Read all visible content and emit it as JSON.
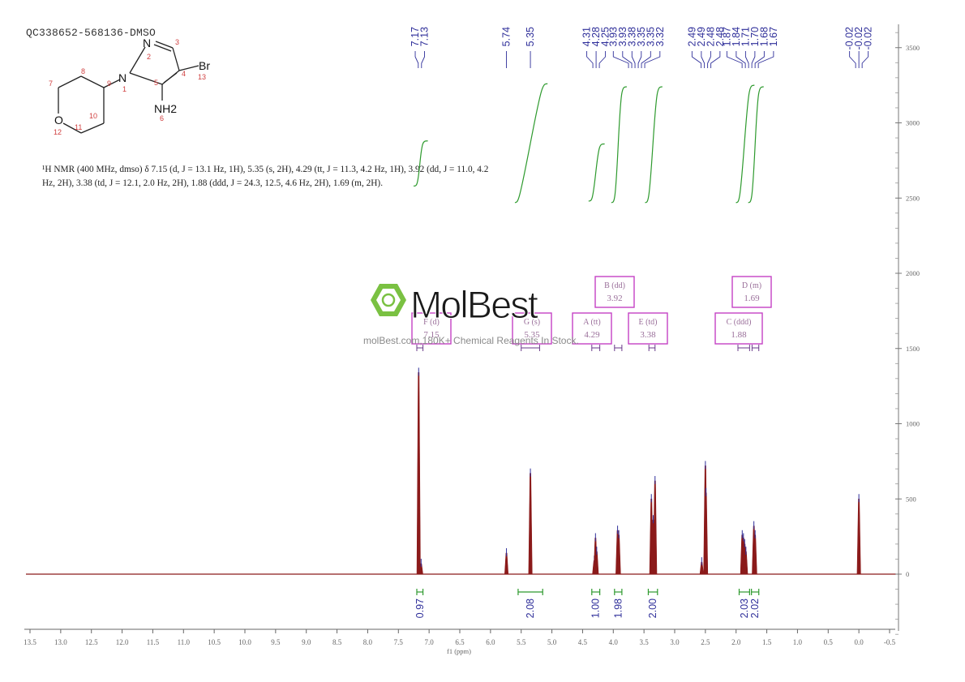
{
  "sample_id": "QC338652-568136-DMSO",
  "nmr_description": "¹H NMR (400 MHz, dmso) δ 7.15 (d, J = 13.1 Hz, 1H), 5.35 (s, 2H), 4.29 (tt, J = 11.3, 4.2 Hz, 1H), 3.92 (dd, J = 11.0, 4.2 Hz, 2H), 3.38 (td, J = 12.1, 2.0 Hz, 2H), 1.88 (ddd, J = 24.3, 12.5, 4.6 Hz, 2H), 1.69 (m, 2H).",
  "structure": {
    "atoms": {
      "n1": "N",
      "n2": "N",
      "o": "O",
      "br": "Br",
      "nh2": "NH2"
    },
    "numbers": [
      "1",
      "2",
      "3",
      "4",
      "5",
      "6",
      "7",
      "8",
      "9",
      "10",
      "11",
      "12",
      "13"
    ]
  },
  "watermark": {
    "logo": "MolBest",
    "url_text": "molBest.com,180K+ Chemical Reagents In Stock."
  },
  "chart_data": {
    "type": "line",
    "xlabel": "f1 (ppm)",
    "xlim": [
      13.5,
      -0.5
    ],
    "ylim": [
      -500,
      3600
    ],
    "x_ticks": [
      "13.5",
      "13.0",
      "12.5",
      "12.0",
      "11.5",
      "11.0",
      "10.5",
      "10.0",
      "9.5",
      "9.0",
      "8.5",
      "8.0",
      "7.5",
      "7.0",
      "6.5",
      "6.0",
      "5.5",
      "5.0",
      "4.5",
      "4.0",
      "3.5",
      "3.0",
      "2.5",
      "2.0",
      "1.5",
      "1.0",
      "0.5",
      "0.0",
      "-0.5"
    ],
    "y_ticks": [
      "3500",
      "3000",
      "2500",
      "2000",
      "1500",
      "1000",
      "500",
      "0"
    ],
    "peak_labels": [
      "7.17",
      "7.13",
      "5.74",
      "5.35",
      "4.31",
      "4.28",
      "4.25",
      "3.93",
      "3.93",
      "3.38",
      "3.35",
      "3.35",
      "3.32",
      "2.49",
      "2.49",
      "2.48",
      "2.48",
      "1.87",
      "1.84",
      "1.71",
      "1.70",
      "1.68",
      "1.67",
      "-0.02",
      "-0.02",
      "-0.02"
    ],
    "peaks": [
      {
        "ppm": 7.17,
        "h": 1340
      },
      {
        "ppm": 7.13,
        "h": 70
      },
      {
        "ppm": 5.74,
        "h": 140
      },
      {
        "ppm": 5.35,
        "h": 670
      },
      {
        "ppm": 4.31,
        "h": 90
      },
      {
        "ppm": 4.29,
        "h": 240
      },
      {
        "ppm": 4.27,
        "h": 150
      },
      {
        "ppm": 3.93,
        "h": 290
      },
      {
        "ppm": 3.91,
        "h": 260
      },
      {
        "ppm": 3.38,
        "h": 500
      },
      {
        "ppm": 3.35,
        "h": 360
      },
      {
        "ppm": 3.32,
        "h": 620
      },
      {
        "ppm": 2.56,
        "h": 80
      },
      {
        "ppm": 2.5,
        "h": 720
      },
      {
        "ppm": 2.49,
        "h": 540
      },
      {
        "ppm": 1.9,
        "h": 260
      },
      {
        "ppm": 1.88,
        "h": 240
      },
      {
        "ppm": 1.86,
        "h": 200
      },
      {
        "ppm": 1.84,
        "h": 150
      },
      {
        "ppm": 1.71,
        "h": 320
      },
      {
        "ppm": 1.69,
        "h": 260
      },
      {
        "ppm": 0.0,
        "h": 500
      }
    ],
    "integrals": [
      {
        "from": 7.2,
        "to": 7.1,
        "value": "0.97",
        "y_start": 2580,
        "y_end": 2880
      },
      {
        "from": 5.55,
        "to": 5.15,
        "value": "2.08",
        "y_start": 2470,
        "y_end": 3260
      },
      {
        "from": 4.35,
        "to": 4.22,
        "value": "1.00",
        "y_start": 2480,
        "y_end": 2860
      },
      {
        "from": 3.98,
        "to": 3.86,
        "value": "1.98",
        "y_start": 2470,
        "y_end": 3240
      },
      {
        "from": 3.43,
        "to": 3.28,
        "value": "2.00",
        "y_start": 2470,
        "y_end": 3240
      },
      {
        "from": 1.95,
        "to": 1.78,
        "value": "2.03",
        "y_start": 2470,
        "y_end": 3250
      },
      {
        "from": 1.75,
        "to": 1.63,
        "value": "2.02",
        "y_start": 2470,
        "y_end": 3240
      }
    ],
    "multiplets": [
      {
        "name": "F (d)",
        "shift": "7.15",
        "from": 7.2,
        "to": 7.1
      },
      {
        "name": "G (s)",
        "shift": "5.35",
        "from": 5.5,
        "to": 5.2
      },
      {
        "name": "A (tt)",
        "shift": "4.29",
        "from": 4.35,
        "to": 4.22
      },
      {
        "name": "B (dd)",
        "shift": "3.92",
        "from": 3.98,
        "to": 3.86
      },
      {
        "name": "E (td)",
        "shift": "3.38",
        "from": 3.42,
        "to": 3.32
      },
      {
        "name": "C (ddd)",
        "shift": "1.88",
        "from": 1.97,
        "to": 1.78
      },
      {
        "name": "D (m)",
        "shift": "1.69",
        "from": 1.74,
        "to": 1.63
      }
    ],
    "colors": {
      "spectrum": "#8b1a1a",
      "integral": "#2e9a2e",
      "peak_label": "#2f2f9a",
      "multiplet_box": "#c542c5",
      "logo": "#7ac142"
    }
  }
}
